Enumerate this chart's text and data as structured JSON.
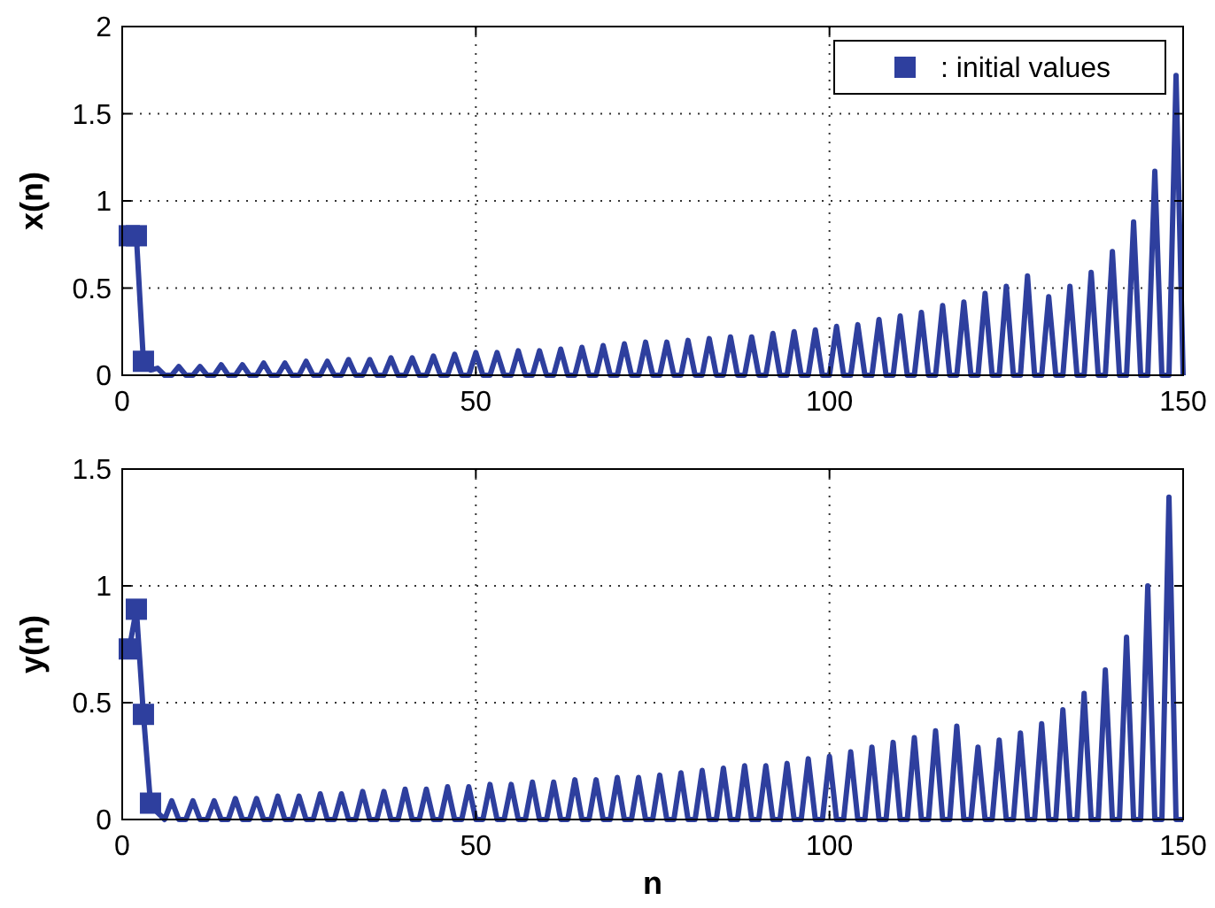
{
  "chart_data": [
    {
      "type": "line",
      "ylabel": "x(n)",
      "xlim": [
        0,
        150
      ],
      "xticks": [
        0,
        50,
        100,
        150
      ],
      "ylim": [
        0,
        2
      ],
      "yticks": [
        0,
        0.5,
        1,
        1.5,
        2
      ],
      "grid": true,
      "legend": "top right",
      "x": [
        1,
        2,
        3,
        4,
        5,
        6,
        7,
        8,
        9,
        10,
        11,
        12,
        13,
        14,
        15,
        16,
        17,
        18,
        19,
        20,
        21,
        22,
        23,
        24,
        25,
        26,
        27,
        28,
        29,
        30,
        31,
        32,
        33,
        34,
        35,
        36,
        37,
        38,
        39,
        40,
        41,
        42,
        43,
        44,
        45,
        46,
        47,
        48,
        49,
        50,
        51,
        52,
        53,
        54,
        55,
        56,
        57,
        58,
        59,
        60,
        61,
        62,
        63,
        64,
        65,
        66,
        67,
        68,
        69,
        70,
        71,
        72,
        73,
        74,
        75,
        76,
        77,
        78,
        79,
        80,
        81,
        82,
        83,
        84,
        85,
        86,
        87,
        88,
        89,
        90,
        91,
        92,
        93,
        94,
        95,
        96,
        97,
        98,
        99,
        100,
        101,
        102,
        103,
        104,
        105,
        106,
        107,
        108,
        109,
        110,
        111,
        112,
        113,
        114,
        115,
        116,
        117,
        118,
        119,
        120,
        121,
        122,
        123,
        124,
        125,
        126,
        127,
        128,
        129,
        130,
        131,
        132,
        133,
        134,
        135,
        136,
        137,
        138,
        139,
        140,
        141,
        142,
        143,
        144,
        145,
        146,
        147,
        148,
        149,
        150
      ],
      "series": [
        {
          "color": "#2e3f9e",
          "line_style": "solid",
          "marker": "none",
          "values": [
            0.8,
            0.8,
            0.08,
            0.03,
            0.04,
            0,
            0,
            0.05,
            0,
            0,
            0.05,
            0,
            0,
            0.06,
            0,
            0,
            0.06,
            0,
            0,
            0.07,
            0,
            0,
            0.07,
            0,
            0,
            0.08,
            0,
            0,
            0.08,
            0,
            0,
            0.09,
            0,
            0,
            0.09,
            0,
            0,
            0.1,
            0,
            0,
            0.1,
            0,
            0,
            0.11,
            0,
            0,
            0.12,
            0,
            0,
            0.13,
            0,
            0,
            0.13,
            0,
            0,
            0.14,
            0,
            0,
            0.14,
            0,
            0,
            0.15,
            0,
            0,
            0.16,
            0,
            0,
            0.17,
            0,
            0,
            0.18,
            0,
            0,
            0.19,
            0,
            0,
            0.19,
            0,
            0,
            0.2,
            0,
            0,
            0.21,
            0,
            0,
            0.22,
            0,
            0,
            0.22,
            0,
            0,
            0.24,
            0,
            0,
            0.25,
            0,
            0,
            0.26,
            0,
            0,
            0.28,
            0,
            0,
            0.29,
            0,
            0,
            0.32,
            0,
            0,
            0.34,
            0,
            0,
            0.36,
            0,
            0,
            0.4,
            0,
            0,
            0.42,
            0,
            0,
            0.47,
            0,
            0,
            0.51,
            0,
            0,
            0.57,
            0,
            0,
            0.45,
            0,
            0,
            0.51,
            0,
            0,
            0.59,
            0,
            0,
            0.71,
            0,
            0,
            0.88,
            0,
            0,
            1.17,
            0,
            0,
            1.72,
            0
          ]
        },
        {
          "type": "scatter",
          "name": ": initial values",
          "color": "#2e3f9e",
          "marker": "square",
          "x": [
            1,
            2,
            3
          ],
          "values": [
            0.8,
            0.8,
            0.08
          ]
        }
      ]
    },
    {
      "type": "line",
      "xlabel": "n",
      "ylabel": "y(n)",
      "xlim": [
        0,
        150
      ],
      "xticks": [
        0,
        50,
        100,
        150
      ],
      "ylim": [
        0,
        1.5
      ],
      "yticks": [
        0,
        0.5,
        1,
        1.5
      ],
      "grid": true,
      "x": [
        1,
        2,
        3,
        4,
        5,
        6,
        7,
        8,
        9,
        10,
        11,
        12,
        13,
        14,
        15,
        16,
        17,
        18,
        19,
        20,
        21,
        22,
        23,
        24,
        25,
        26,
        27,
        28,
        29,
        30,
        31,
        32,
        33,
        34,
        35,
        36,
        37,
        38,
        39,
        40,
        41,
        42,
        43,
        44,
        45,
        46,
        47,
        48,
        49,
        50,
        51,
        52,
        53,
        54,
        55,
        56,
        57,
        58,
        59,
        60,
        61,
        62,
        63,
        64,
        65,
        66,
        67,
        68,
        69,
        70,
        71,
        72,
        73,
        74,
        75,
        76,
        77,
        78,
        79,
        80,
        81,
        82,
        83,
        84,
        85,
        86,
        87,
        88,
        89,
        90,
        91,
        92,
        93,
        94,
        95,
        96,
        97,
        98,
        99,
        100,
        101,
        102,
        103,
        104,
        105,
        106,
        107,
        108,
        109,
        110,
        111,
        112,
        113,
        114,
        115,
        116,
        117,
        118,
        119,
        120,
        121,
        122,
        123,
        124,
        125,
        126,
        127,
        128,
        129,
        130,
        131,
        132,
        133,
        134,
        135,
        136,
        137,
        138,
        139,
        140,
        141,
        142,
        143,
        144,
        145,
        146,
        147,
        148,
        149,
        150
      ],
      "series": [
        {
          "color": "#2e3f9e",
          "line_style": "solid",
          "marker": "none",
          "values": [
            0.73,
            0.9,
            0.45,
            0.07,
            0.03,
            0,
            0.08,
            0,
            0,
            0.08,
            0,
            0,
            0.08,
            0,
            0,
            0.09,
            0,
            0,
            0.09,
            0,
            0,
            0.1,
            0,
            0,
            0.1,
            0,
            0,
            0.11,
            0,
            0,
            0.11,
            0,
            0,
            0.12,
            0,
            0,
            0.12,
            0,
            0,
            0.13,
            0,
            0,
            0.13,
            0,
            0,
            0.14,
            0,
            0,
            0.14,
            0,
            0,
            0.15,
            0,
            0,
            0.15,
            0,
            0,
            0.16,
            0,
            0,
            0.16,
            0,
            0,
            0.17,
            0,
            0,
            0.17,
            0,
            0,
            0.18,
            0,
            0,
            0.18,
            0,
            0,
            0.19,
            0,
            0,
            0.2,
            0,
            0,
            0.21,
            0,
            0,
            0.22,
            0,
            0,
            0.23,
            0,
            0,
            0.23,
            0,
            0,
            0.24,
            0,
            0,
            0.26,
            0,
            0,
            0.27,
            0,
            0,
            0.29,
            0,
            0,
            0.31,
            0,
            0,
            0.33,
            0,
            0,
            0.35,
            0,
            0,
            0.38,
            0,
            0,
            0.4,
            0,
            0,
            0.31,
            0,
            0,
            0.34,
            0,
            0,
            0.37,
            0,
            0,
            0.41,
            0,
            0,
            0.47,
            0,
            0,
            0.54,
            0,
            0,
            0.64,
            0,
            0,
            0.78,
            0,
            0,
            1.0,
            0,
            0,
            1.38,
            0,
            0
          ]
        },
        {
          "type": "scatter",
          "color": "#2e3f9e",
          "marker": "square",
          "x": [
            1,
            2,
            3,
            4
          ],
          "values": [
            0.73,
            0.9,
            0.45,
            0.07
          ]
        }
      ]
    }
  ]
}
